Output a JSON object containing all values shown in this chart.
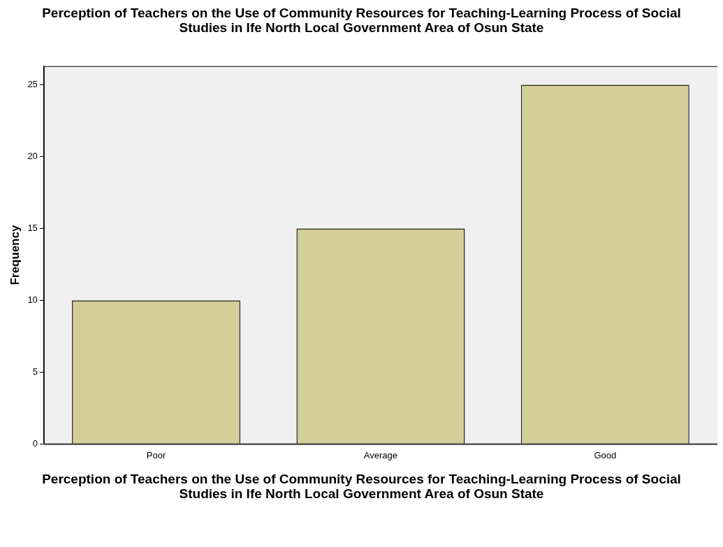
{
  "chart_data": {
    "type": "bar",
    "title": "Perception of Teachers on the Use of Community Resources for Teaching-Learning Process of Social Studies in Ife North Local Government Area of Osun State",
    "xlabel": "Perception of Teachers on the Use of Community Resources for Teaching-Learning Process of Social Studies in Ife North Local Government Area of Osun State",
    "ylabel": "Frequency",
    "categories": [
      "Poor",
      "Average",
      "Good"
    ],
    "values": [
      10,
      15,
      25
    ],
    "color": "#d3ce97",
    "ylim": [
      0,
      26.3
    ],
    "yticks": [
      0,
      5,
      10,
      15,
      20,
      25
    ],
    "grid": false,
    "legend": false
  }
}
